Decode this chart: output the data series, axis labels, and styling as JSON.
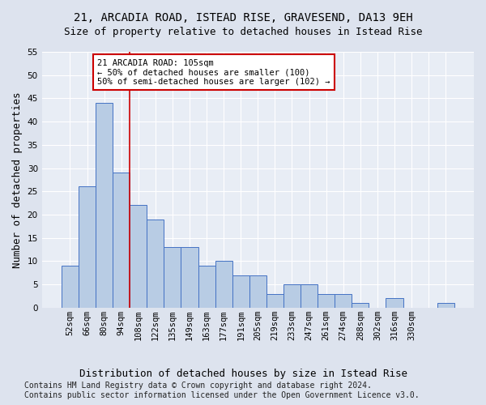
{
  "title": "21, ARCADIA ROAD, ISTEAD RISE, GRAVESEND, DA13 9EH",
  "subtitle": "Size of property relative to detached houses in Istead Rise",
  "xlabel": "Distribution of detached houses by size in Istead Rise",
  "ylabel": "Number of detached properties",
  "bar_values": [
    9,
    26,
    44,
    29,
    22,
    19,
    13,
    13,
    9,
    10,
    7,
    7,
    3,
    5,
    5,
    3,
    3,
    1,
    0,
    2,
    0,
    0,
    1
  ],
  "bar_labels": [
    "52sqm",
    "66sqm",
    "80sqm",
    "94sqm",
    "108sqm",
    "122sqm",
    "135sqm",
    "149sqm",
    "163sqm",
    "177sqm",
    "191sqm",
    "205sqm",
    "219sqm",
    "233sqm",
    "247sqm",
    "261sqm",
    "274sqm",
    "288sqm",
    "302sqm",
    "316sqm",
    "330sqm",
    "",
    ""
  ],
  "bar_color": "#b8cce4",
  "bar_edge_color": "#4472c4",
  "annotation_text": "21 ARCADIA ROAD: 105sqm\n← 50% of detached houses are smaller (100)\n50% of semi-detached houses are larger (102) →",
  "annotation_box_color": "#ffffff",
  "annotation_box_edge_color": "#cc0000",
  "vline_color": "#cc0000",
  "vline_x": 3.5,
  "ylim": [
    0,
    55
  ],
  "yticks": [
    0,
    5,
    10,
    15,
    20,
    25,
    30,
    35,
    40,
    45,
    50,
    55
  ],
  "footer_line1": "Contains HM Land Registry data © Crown copyright and database right 2024.",
  "footer_line2": "Contains public sector information licensed under the Open Government Licence v3.0.",
  "bg_color": "#dde3ee",
  "plot_bg_color": "#e8edf5",
  "grid_color": "#ffffff",
  "title_fontsize": 10,
  "subtitle_fontsize": 9,
  "axis_label_fontsize": 9,
  "tick_fontsize": 7.5,
  "footer_fontsize": 7
}
